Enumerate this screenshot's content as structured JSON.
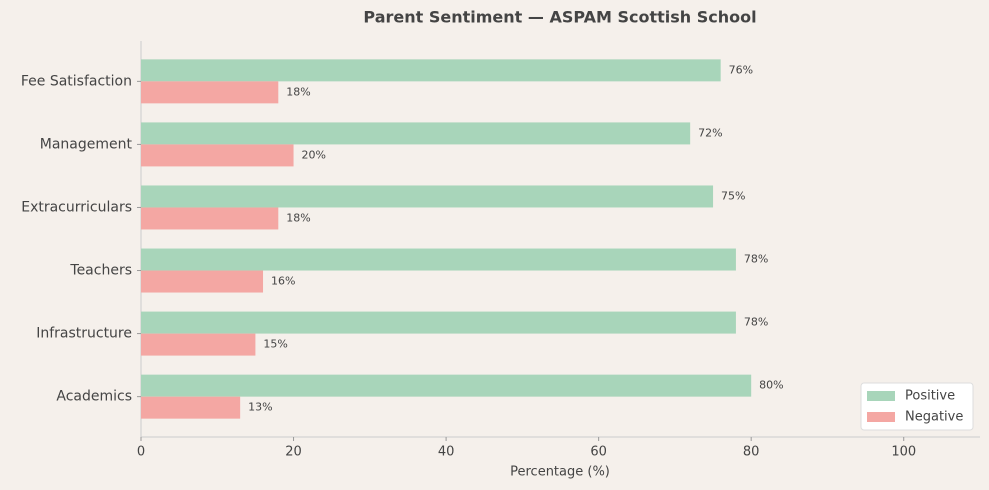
{
  "chart_data": {
    "type": "bar",
    "orientation": "horizontal",
    "title": "Parent Sentiment — ASPAM Scottish School",
    "x_label": "Percentage (%)",
    "categories": [
      "Fee Satisfaction",
      "Management",
      "Extracurriculars",
      "Teachers",
      "Infrastructure",
      "Academics"
    ],
    "series": [
      {
        "name": "Positive",
        "color": "#a8d5ba",
        "values": [
          76,
          72,
          75,
          78,
          78,
          80
        ],
        "value_labels": [
          "76%",
          "72%",
          "75%",
          "78%",
          "78%",
          "80%"
        ]
      },
      {
        "name": "Negative",
        "color": "#f4a7a3",
        "values": [
          18,
          20,
          18,
          16,
          15,
          13
        ],
        "value_labels": [
          "18%",
          "20%",
          "18%",
          "16%",
          "15%",
          "13%"
        ]
      }
    ],
    "xlim": [
      0,
      110
    ],
    "xticks": [
      0,
      20,
      40,
      60,
      80,
      100
    ],
    "legend": "lower right"
  }
}
